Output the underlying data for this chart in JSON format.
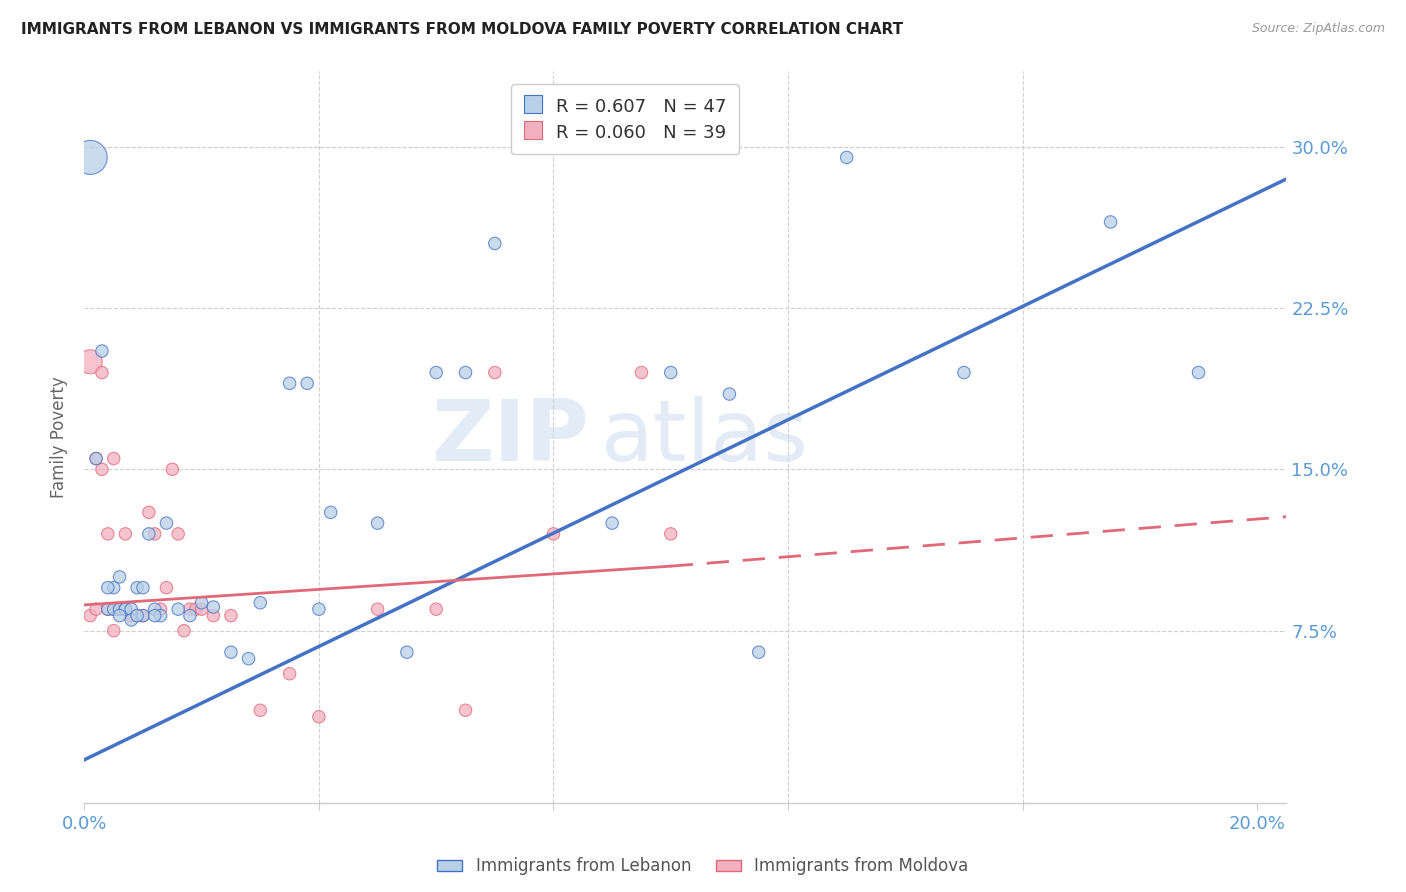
{
  "title": "IMMIGRANTS FROM LEBANON VS IMMIGRANTS FROM MOLDOVA FAMILY POVERTY CORRELATION CHART",
  "source": "Source: ZipAtlas.com",
  "ylabel": "Family Poverty",
  "xlim": [
    0.0,
    0.205
  ],
  "ylim": [
    -0.005,
    0.335
  ],
  "yticks": [
    0.075,
    0.15,
    0.225,
    0.3
  ],
  "ytick_labels": [
    "7.5%",
    "15.0%",
    "22.5%",
    "30.0%"
  ],
  "xticks": [
    0.0,
    0.04,
    0.08,
    0.12,
    0.16,
    0.2
  ],
  "legend_entry1": "R = 0.607   N = 47",
  "legend_entry2": "R = 0.060   N = 39",
  "color_lebanon": "#b8d0e8",
  "color_moldova": "#f2b0c0",
  "color_line_lebanon": "#4472c4",
  "color_line_moldova": "#e06878",
  "watermark_zip": "ZIP",
  "watermark_atlas": "atlas",
  "lebanon_x": [
    0.001,
    0.003,
    0.004,
    0.005,
    0.005,
    0.006,
    0.006,
    0.007,
    0.007,
    0.008,
    0.008,
    0.009,
    0.01,
    0.01,
    0.011,
    0.012,
    0.013,
    0.014,
    0.016,
    0.018,
    0.02,
    0.022,
    0.025,
    0.028,
    0.03,
    0.035,
    0.038,
    0.04,
    0.042,
    0.05,
    0.055,
    0.06,
    0.065,
    0.07,
    0.09,
    0.1,
    0.11,
    0.115,
    0.13,
    0.15,
    0.175,
    0.19,
    0.002,
    0.004,
    0.006,
    0.009,
    0.012
  ],
  "lebanon_y": [
    0.295,
    0.205,
    0.085,
    0.095,
    0.085,
    0.1,
    0.085,
    0.085,
    0.085,
    0.085,
    0.08,
    0.095,
    0.095,
    0.082,
    0.12,
    0.085,
    0.082,
    0.125,
    0.085,
    0.082,
    0.088,
    0.086,
    0.065,
    0.062,
    0.088,
    0.19,
    0.19,
    0.085,
    0.13,
    0.125,
    0.065,
    0.195,
    0.195,
    0.255,
    0.125,
    0.195,
    0.185,
    0.065,
    0.295,
    0.195,
    0.265,
    0.195,
    0.155,
    0.095,
    0.082,
    0.082,
    0.082
  ],
  "moldova_x": [
    0.001,
    0.002,
    0.002,
    0.003,
    0.004,
    0.004,
    0.005,
    0.005,
    0.006,
    0.007,
    0.007,
    0.008,
    0.009,
    0.01,
    0.011,
    0.012,
    0.013,
    0.014,
    0.015,
    0.016,
    0.017,
    0.018,
    0.019,
    0.02,
    0.022,
    0.025,
    0.03,
    0.035,
    0.04,
    0.05,
    0.06,
    0.065,
    0.07,
    0.08,
    0.095,
    0.1,
    0.001,
    0.003,
    0.005
  ],
  "moldova_y": [
    0.082,
    0.155,
    0.085,
    0.15,
    0.085,
    0.12,
    0.085,
    0.075,
    0.085,
    0.085,
    0.12,
    0.082,
    0.082,
    0.082,
    0.13,
    0.12,
    0.085,
    0.095,
    0.15,
    0.12,
    0.075,
    0.085,
    0.085,
    0.085,
    0.082,
    0.082,
    0.038,
    0.055,
    0.035,
    0.085,
    0.085,
    0.038,
    0.195,
    0.12,
    0.195,
    0.12,
    0.2,
    0.195,
    0.155
  ],
  "lebanon_sizes": [
    600,
    80,
    80,
    80,
    80,
    80,
    80,
    80,
    80,
    80,
    80,
    80,
    80,
    80,
    80,
    80,
    80,
    80,
    80,
    80,
    80,
    80,
    80,
    80,
    80,
    80,
    80,
    80,
    80,
    80,
    80,
    80,
    80,
    80,
    80,
    80,
    80,
    80,
    80,
    80,
    80,
    80,
    80,
    80,
    80,
    80,
    80
  ],
  "moldova_sizes": [
    80,
    80,
    80,
    80,
    80,
    80,
    80,
    80,
    80,
    80,
    80,
    80,
    80,
    80,
    80,
    80,
    80,
    80,
    80,
    80,
    80,
    80,
    80,
    80,
    80,
    80,
    80,
    80,
    80,
    80,
    80,
    80,
    80,
    80,
    80,
    80,
    300,
    80,
    80
  ],
  "leb_line_x0": 0.0,
  "leb_line_y0": 0.015,
  "leb_line_x1": 0.205,
  "leb_line_y1": 0.285,
  "mol_line_x0": 0.0,
  "mol_line_y0": 0.087,
  "mol_line_x1_solid": 0.1,
  "mol_line_y1_solid": 0.105,
  "mol_line_x1_dash": 0.205,
  "mol_line_y1_dash": 0.128,
  "background_color": "#ffffff",
  "grid_color": "#d0d0d0",
  "title_fontsize": 11,
  "tick_label_color": "#5b9bd5",
  "ylabel_color": "#666666"
}
